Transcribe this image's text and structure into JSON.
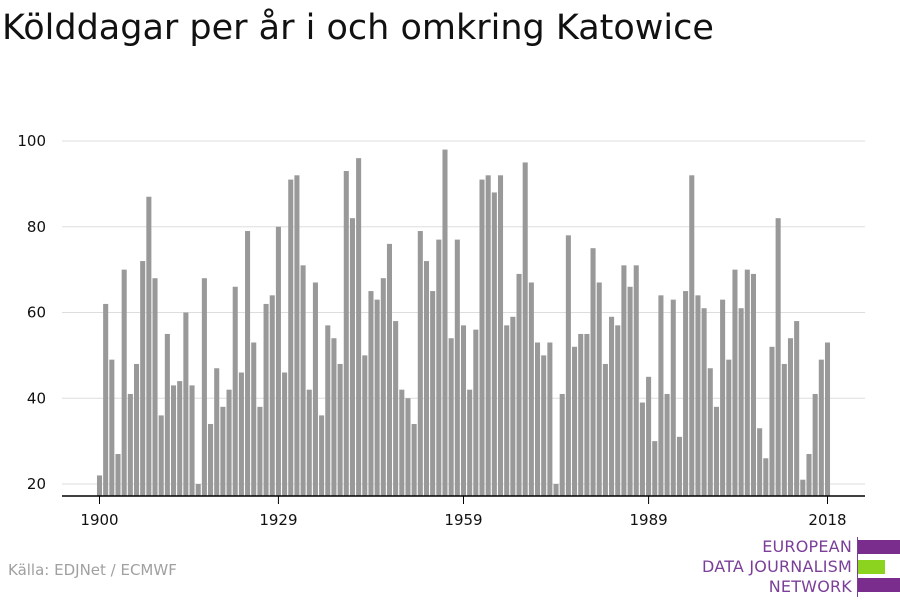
{
  "title": "Kölddagar per år i och omkring Katowice",
  "source": "Källa: EDJNet / ECMWF",
  "logo": {
    "lines": [
      "EUROPEAN",
      "DATA JOURNALISM",
      "NETWORK"
    ],
    "colors": {
      "purple": "#7b2d8e",
      "green": "#8cd31f"
    }
  },
  "colors": {
    "bar": "#999999",
    "grid": "#dddddd",
    "axis": "#000000",
    "text": "#111111"
  },
  "chart_data": {
    "type": "bar",
    "title": "Kölddagar per år i och omkring Katowice",
    "xlabel": "",
    "ylabel": "",
    "x_start": 1900,
    "x_end": 2018,
    "xticks": [
      1900,
      1929,
      1959,
      1989,
      2018
    ],
    "yticks": [
      20,
      40,
      60,
      80,
      100
    ],
    "ylim": [
      17,
      100
    ],
    "grid": "horizontal",
    "values": [
      22,
      62,
      49,
      27,
      70,
      41,
      48,
      72,
      87,
      68,
      36,
      55,
      43,
      44,
      60,
      43,
      20,
      68,
      34,
      47,
      38,
      42,
      66,
      46,
      79,
      53,
      38,
      62,
      64,
      80,
      46,
      91,
      92,
      71,
      42,
      67,
      36,
      57,
      54,
      48,
      93,
      82,
      96,
      50,
      65,
      63,
      68,
      76,
      58,
      42,
      40,
      34,
      79,
      72,
      65,
      77,
      98,
      54,
      77,
      57,
      42,
      56,
      91,
      92,
      88,
      92,
      57,
      59,
      69,
      95,
      67,
      53,
      50,
      53,
      20,
      41,
      78,
      52,
      55,
      55,
      75,
      67,
      48,
      59,
      57,
      71,
      66,
      71,
      39,
      45,
      30,
      64,
      41,
      63,
      31,
      65,
      92,
      64,
      61,
      47,
      38,
      63,
      49,
      70,
      61,
      70,
      69,
      33,
      26,
      52,
      82,
      48,
      54,
      58,
      21,
      27,
      41,
      49,
      53
    ]
  }
}
